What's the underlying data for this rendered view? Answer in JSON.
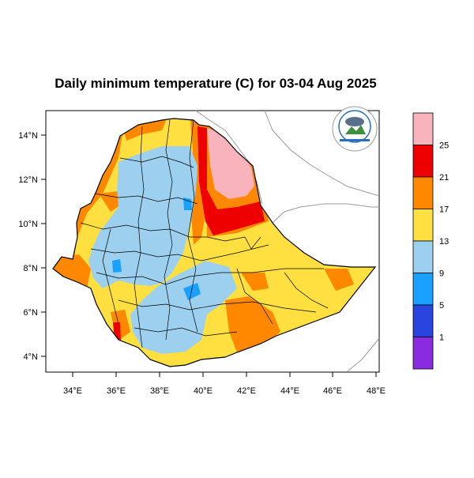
{
  "map": {
    "title": "Daily minimum temperature (C) for 03-04 Aug 2025",
    "lat_ticks": [
      "4°N",
      "6°N",
      "8°N",
      "10°N",
      "12°N",
      "14°N"
    ],
    "lon_ticks": [
      "34°E",
      "36°E",
      "38°E",
      "40°E",
      "42°E",
      "44°E",
      "46°E",
      "48°E"
    ],
    "legend": {
      "bins": [
        {
          "color": "#f9b3bc",
          "label": "25"
        },
        {
          "color": "#ee0000",
          "label": "21"
        },
        {
          "color": "#ff8800",
          "label": "17"
        },
        {
          "color": "#ffe040",
          "label": "13"
        },
        {
          "color": "#9dd0ef",
          "label": "9"
        },
        {
          "color": "#1aa0ff",
          "label": "5"
        },
        {
          "color": "#2a44e0",
          "label": "1"
        },
        {
          "color": "#8a2be2",
          "label": ""
        }
      ]
    }
  }
}
